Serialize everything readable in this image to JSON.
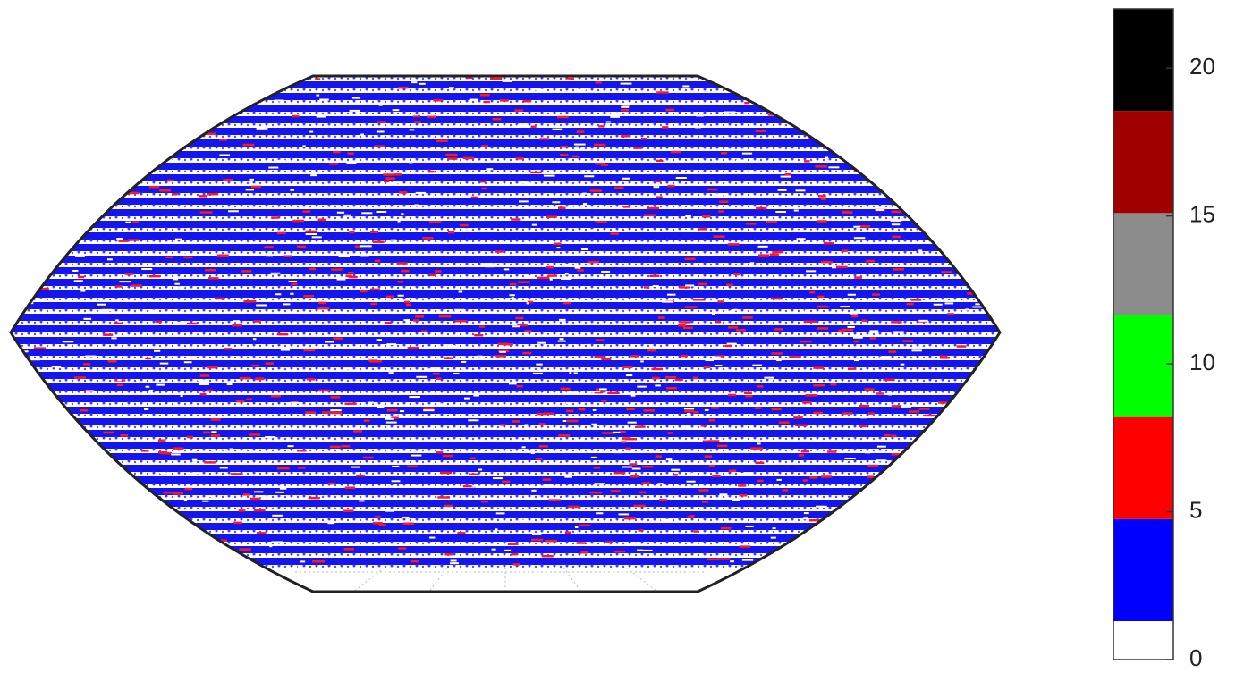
{
  "chart_data": {
    "type": "map",
    "colorbar": {
      "colors": [
        "#ffffff",
        "#0000ff",
        "#ff0000",
        "#00ff00",
        "#8c8c8c",
        "#a00000",
        "#000000"
      ],
      "bounds": [
        0,
        1.3,
        4.75,
        8.2,
        11.65,
        15.1,
        18.55,
        22
      ],
      "ylim": [
        0,
        22
      ],
      "yticks": [
        0,
        5,
        10,
        15,
        20
      ]
    }
  }
}
